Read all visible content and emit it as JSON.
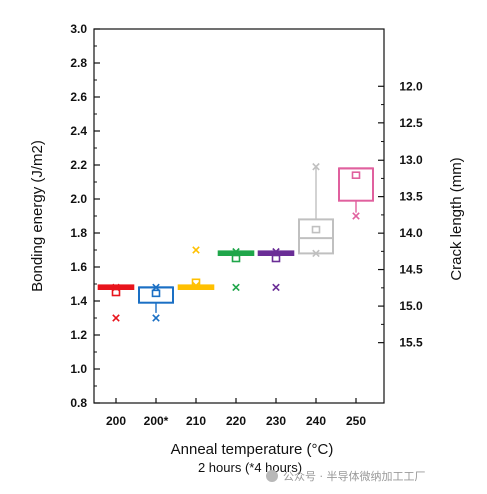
{
  "chart_data": {
    "type": "box",
    "xlabel": "Anneal temperature (°C)",
    "xlabel_sub": "2 hours (*4 hours)",
    "ylabel_left": "Bonding  energy (J/m2)",
    "ylabel_right": "Crack length (mm)",
    "ylim": [
      0.8,
      3.0
    ],
    "left_ticks": [
      "0.8",
      "1.0",
      "1.2",
      "1.4",
      "1.6",
      "1.8",
      "2.0",
      "2.2",
      "2.4",
      "2.6",
      "2.8",
      "3.0"
    ],
    "left_tick_values": [
      0.8,
      1.0,
      1.2,
      1.4,
      1.6,
      1.8,
      2.0,
      2.2,
      2.4,
      2.6,
      2.8,
      3.0
    ],
    "right_ticks": [
      {
        "label": "12.0",
        "energy": 2.663
      },
      {
        "label": "12.5",
        "energy": 2.448
      },
      {
        "label": "13.0",
        "energy": 2.228
      },
      {
        "label": "13.5",
        "energy": 2.014
      },
      {
        "label": "14.0",
        "energy": 1.799
      },
      {
        "label": "14.5",
        "energy": 1.585
      },
      {
        "label": "15.0",
        "energy": 1.37
      },
      {
        "label": "15.5",
        "energy": 1.155
      }
    ],
    "categories": [
      "200",
      "200*",
      "210",
      "220",
      "230",
      "240",
      "250"
    ],
    "boxes": [
      {
        "category": "200",
        "color": "#e8141c",
        "q1": 1.48,
        "median": 1.485,
        "q3": 1.49,
        "mean": 1.45,
        "whisker_low": null,
        "whisker_high": null,
        "outliers": [
          1.3,
          1.48
        ]
      },
      {
        "category": "200*",
        "color": "#1a6fc4",
        "q1": 1.39,
        "median": 1.48,
        "q3": 1.48,
        "mean": 1.445,
        "whisker_low": 1.33,
        "whisker_high": null,
        "outliers": [
          1.3,
          1.48
        ]
      },
      {
        "category": "210",
        "color": "#ffc000",
        "q1": 1.48,
        "median": 1.485,
        "q3": 1.49,
        "mean": 1.51,
        "whisker_low": null,
        "whisker_high": null,
        "outliers": [
          1.7,
          1.49
        ]
      },
      {
        "category": "220",
        "color": "#1fa64a",
        "q1": 1.68,
        "median": 1.685,
        "q3": 1.69,
        "mean": 1.65,
        "whisker_low": null,
        "whisker_high": null,
        "outliers": [
          1.48,
          1.69
        ]
      },
      {
        "category": "230",
        "color": "#6a2d96",
        "q1": 1.68,
        "median": 1.685,
        "q3": 1.69,
        "mean": 1.65,
        "whisker_low": null,
        "whisker_high": null,
        "outliers": [
          1.48,
          1.69
        ]
      },
      {
        "category": "240",
        "color": "#c0c0c0",
        "q1": 1.68,
        "median": 1.77,
        "q3": 1.88,
        "mean": 1.82,
        "whisker_low": null,
        "whisker_high": 2.19,
        "outliers": [
          2.19,
          1.68
        ]
      },
      {
        "category": "250",
        "color": "#e0609e",
        "q1": 1.99,
        "median": 2.18,
        "q3": 2.18,
        "mean": 2.14,
        "whisker_low": 1.92,
        "whisker_high": null,
        "outliers": [
          1.9
        ]
      }
    ],
    "grid": false
  },
  "watermark": {
    "icon": "wechat-icon",
    "text": "公众号 · 半导体微纳加工工厂"
  }
}
